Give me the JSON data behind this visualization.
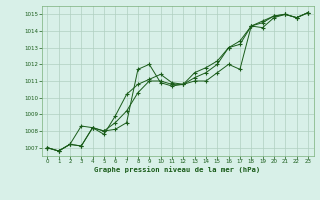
{
  "title": "Graphe pression niveau de la mer (hPa)",
  "bg_color": "#d8f0e8",
  "grid_color": "#b0d0c0",
  "line_color": "#1a5c1a",
  "spine_color": "#7ab07a",
  "xlim": [
    -0.5,
    23.5
  ],
  "ylim": [
    1006.5,
    1015.5
  ],
  "xticks": [
    0,
    1,
    2,
    3,
    4,
    5,
    6,
    7,
    8,
    9,
    10,
    11,
    12,
    13,
    14,
    15,
    16,
    17,
    18,
    19,
    20,
    21,
    22,
    23
  ],
  "yticks": [
    1007,
    1008,
    1009,
    1010,
    1011,
    1012,
    1013,
    1014,
    1015
  ],
  "series": [
    [
      1007.0,
      1006.8,
      1007.2,
      1007.1,
      1008.2,
      1008.0,
      1008.1,
      1008.5,
      1011.7,
      1012.0,
      1010.9,
      1010.7,
      1010.8,
      1011.0,
      1011.0,
      1011.5,
      1012.0,
      1011.7,
      1014.3,
      1014.2,
      1014.8,
      1015.0,
      1014.8,
      1015.1
    ],
    [
      1007.0,
      1006.8,
      1007.2,
      1008.3,
      1008.2,
      1008.0,
      1008.5,
      1009.2,
      1010.3,
      1011.0,
      1011.0,
      1010.8,
      1010.8,
      1011.2,
      1011.5,
      1012.0,
      1013.0,
      1013.2,
      1014.3,
      1014.5,
      1014.9,
      1015.0,
      1014.8,
      1015.1
    ],
    [
      1007.0,
      1006.8,
      1007.2,
      1007.1,
      1008.2,
      1007.8,
      1008.9,
      1010.2,
      1010.8,
      1011.1,
      1011.4,
      1010.9,
      1010.8,
      1011.5,
      1011.8,
      1012.2,
      1013.0,
      1013.4,
      1014.3,
      1014.6,
      1014.9,
      1015.0,
      1014.8,
      1015.1
    ]
  ]
}
